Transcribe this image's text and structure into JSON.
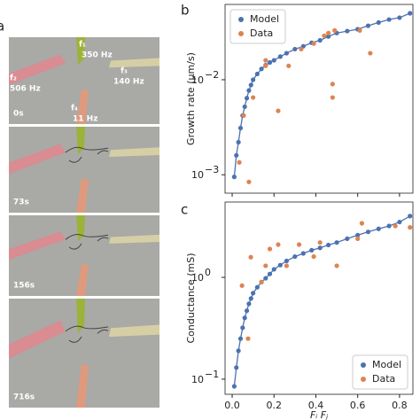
{
  "panels": {
    "a": "a",
    "b": "b",
    "c": "c"
  },
  "photo": {
    "electrodes": {
      "f1": "f₁",
      "f1_freq": "350 Hz",
      "f2": "f₂",
      "f2_freq": "506 Hz",
      "f3": "f₃",
      "f3_freq": "140 Hz",
      "f4": "f₄",
      "f4_freq": "11 Hz"
    },
    "times": [
      "0s",
      "73s",
      "156s",
      "716s"
    ]
  },
  "chart_data": [
    {
      "type": "scatter",
      "ylabel": "Growth rate (μm/s)",
      "log_y": true,
      "legend": "upper left",
      "xlim": [
        -0.034,
        0.864
      ],
      "ylim": [
        0.00064,
        0.062
      ],
      "xticks": [
        0,
        0.2,
        0.4,
        0.6,
        0.8
      ],
      "yticks": [
        {
          "value": 0.001,
          "label": "10",
          "exponent": "−3"
        },
        {
          "value": 0.01,
          "label": "10",
          "exponent": "−2"
        }
      ],
      "series": [
        {
          "name": "Model",
          "color": "#4c72b0",
          "line": true,
          "x": [
            0.01,
            0.02,
            0.03,
            0.04,
            0.05,
            0.06,
            0.07,
            0.08,
            0.09,
            0.1,
            0.12,
            0.14,
            0.16,
            0.18,
            0.2,
            0.23,
            0.26,
            0.3,
            0.34,
            0.38,
            0.42,
            0.46,
            0.5,
            0.55,
            0.6,
            0.65,
            0.7,
            0.75,
            0.8,
            0.85
          ],
          "values": [
            0.00095,
            0.0016,
            0.0022,
            0.0031,
            0.0042,
            0.0052,
            0.0064,
            0.0077,
            0.0088,
            0.01,
            0.0115,
            0.013,
            0.0142,
            0.0152,
            0.016,
            0.0175,
            0.019,
            0.021,
            0.0225,
            0.0245,
            0.026,
            0.0285,
            0.031,
            0.0325,
            0.034,
            0.037,
            0.04,
            0.043,
            0.045,
            0.05
          ]
        },
        {
          "name": "Data",
          "color": "#dd8452",
          "line": false,
          "x": [
            0.034,
            0.08,
            0.055,
            0.1,
            0.16,
            0.16,
            0.22,
            0.27,
            0.33,
            0.39,
            0.44,
            0.46,
            0.48,
            0.48,
            0.49,
            0.61,
            0.66
          ],
          "values": [
            0.00135,
            0.00084,
            0.0042,
            0.0065,
            0.014,
            0.016,
            0.0047,
            0.014,
            0.021,
            0.024,
            0.029,
            0.031,
            0.009,
            0.0065,
            0.033,
            0.033,
            0.019
          ]
        }
      ]
    },
    {
      "type": "scatter",
      "ylabel": "Conductance (mS)",
      "xlabel": "Fᵢ  Fⱼ",
      "log_y": true,
      "legend": "lower right",
      "xlim": [
        -0.034,
        0.864
      ],
      "ylim": [
        0.071,
        5.5
      ],
      "xticks": [
        {
          "value": 0,
          "label": "0.0"
        },
        {
          "value": 0.2,
          "label": "0.2"
        },
        {
          "value": 0.4,
          "label": "0.4"
        },
        {
          "value": 0.6,
          "label": "0.6"
        },
        {
          "value": 0.8,
          "label": "0.8"
        }
      ],
      "yticks": [
        {
          "value": 0.1,
          "label": "10",
          "exponent": "−1"
        },
        {
          "value": 1,
          "label": "10",
          "exponent": "0"
        }
      ],
      "series": [
        {
          "name": "Model",
          "color": "#4c72b0",
          "line": true,
          "x": [
            0.01,
            0.02,
            0.03,
            0.04,
            0.05,
            0.06,
            0.07,
            0.08,
            0.09,
            0.1,
            0.12,
            0.14,
            0.16,
            0.18,
            0.2,
            0.23,
            0.26,
            0.3,
            0.34,
            0.38,
            0.42,
            0.46,
            0.5,
            0.55,
            0.6,
            0.65,
            0.7,
            0.75,
            0.8,
            0.85
          ],
          "values": [
            0.085,
            0.13,
            0.19,
            0.25,
            0.32,
            0.4,
            0.47,
            0.55,
            0.62,
            0.7,
            0.8,
            0.9,
            0.98,
            1.08,
            1.2,
            1.32,
            1.45,
            1.6,
            1.72,
            1.85,
            1.95,
            2.08,
            2.2,
            2.4,
            2.6,
            2.8,
            3.0,
            3.2,
            3.5,
            4.0
          ]
        },
        {
          "name": "Data",
          "color": "#dd8452",
          "line": false,
          "x": [
            0.047,
            0.076,
            0.089,
            0.14,
            0.16,
            0.18,
            0.22,
            0.26,
            0.32,
            0.39,
            0.42,
            0.5,
            0.6,
            0.62,
            0.78,
            0.85
          ],
          "values": [
            0.83,
            0.25,
            1.58,
            0.9,
            1.3,
            1.9,
            2.1,
            1.3,
            2.1,
            1.6,
            2.2,
            1.3,
            2.4,
            3.4,
            3.2,
            3.1
          ]
        }
      ]
    }
  ]
}
